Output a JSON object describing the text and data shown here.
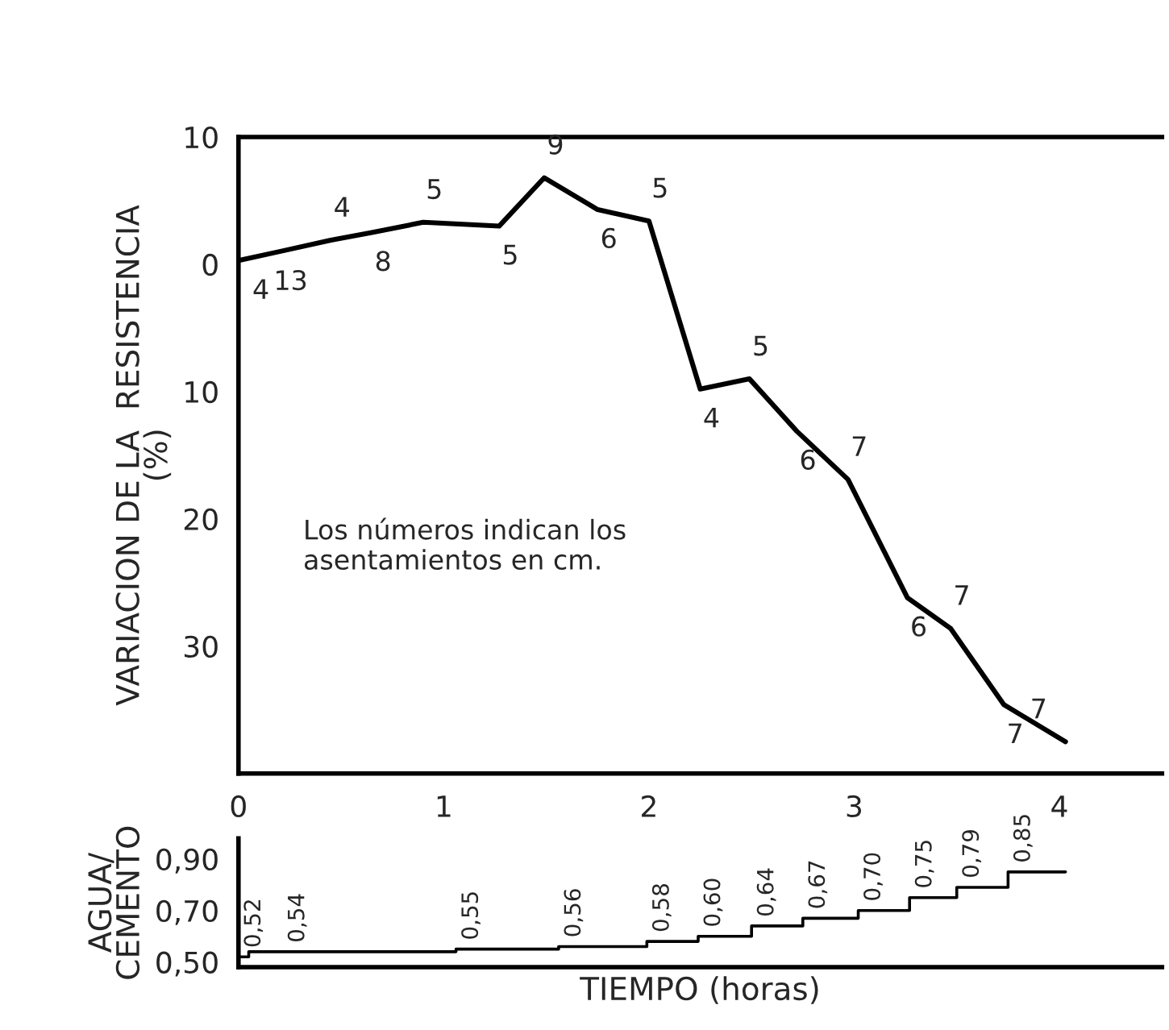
{
  "chart_data": [
    {
      "type": "line",
      "ylabel": "VARIACION DE LA  RESISTENCIA\n(%)",
      "x": [
        0,
        0.2,
        0.45,
        0.65,
        0.9,
        1.27,
        1.49,
        1.75,
        2.0,
        2.25,
        2.49,
        2.72,
        2.97,
        3.26,
        3.47,
        3.73,
        4.03
      ],
      "values": [
        0.3,
        1.0,
        1.9,
        2.5,
        3.3,
        3.0,
        6.8,
        4.3,
        3.4,
        -9.8,
        -9.0,
        -13.1,
        -16.9,
        -26.2,
        -28.6,
        -34.6,
        -37.5
      ],
      "xlim": [
        0,
        4.5
      ],
      "xticks": [
        0,
        1,
        2,
        3,
        4
      ],
      "ylim": [
        -40,
        10
      ],
      "yticks": [
        10,
        0,
        {
          "value": -10,
          "label": "10"
        },
        {
          "value": -20,
          "label": "20"
        },
        {
          "value": -30,
          "label": "30"
        }
      ],
      "annotations": [
        "Los números indican los\nasentamientos en cm.",
        {
          "text": "4",
          "x": 0,
          "y": 0.3
        },
        {
          "text": "13",
          "x": 0.2,
          "y": 1.0
        },
        {
          "text": "4",
          "x": 0.45,
          "y": 1.9
        },
        {
          "text": "8",
          "x": 0.65,
          "y": 2.5
        },
        {
          "text": "5",
          "x": 0.9,
          "y": 3.3
        },
        {
          "text": "5",
          "x": 1.27,
          "y": 3.0
        },
        {
          "text": "9",
          "x": 1.49,
          "y": 6.8
        },
        {
          "text": "6",
          "x": 1.75,
          "y": 4.3
        },
        {
          "text": "5",
          "x": 2.0,
          "y": 3.4
        },
        {
          "text": "4",
          "x": 2.25,
          "y": -9.8
        },
        {
          "text": "5",
          "x": 2.49,
          "y": -9.0
        },
        {
          "text": "6",
          "x": 2.72,
          "y": -13.1
        },
        {
          "text": "7",
          "x": 2.97,
          "y": -16.9
        },
        {
          "text": "6",
          "x": 3.26,
          "y": -26.2
        },
        {
          "text": "7",
          "x": 3.47,
          "y": -28.6
        },
        {
          "text": "7",
          "x": 3.73,
          "y": -34.6
        },
        {
          "text": "7",
          "x": 4.03,
          "y": -37.5
        }
      ]
    },
    {
      "type": "step",
      "ylabel": "AGUA/\nCEMENTO",
      "xlabel": "TIEMPO (horas)",
      "x": [
        0,
        0.05,
        1.06,
        1.56,
        1.99,
        2.24,
        2.5,
        2.75,
        3.02,
        3.27,
        3.5,
        3.75,
        4.03
      ],
      "values": [
        0.52,
        0.54,
        0.55,
        0.56,
        0.58,
        0.6,
        0.64,
        0.67,
        0.7,
        0.75,
        0.79,
        0.85,
        0.85
      ],
      "value_labels": [
        "0,52",
        "0,54",
        "0,55",
        "0,56",
        "0,58",
        "0,60",
        "0,64",
        "0,67",
        "0,70",
        "0,75",
        "0,79",
        "0,85",
        null
      ],
      "xlim": [
        0,
        4.5
      ],
      "ylim": [
        0.48,
        0.98
      ],
      "yticks": [
        {
          "value": 0.5,
          "label": "0,50"
        },
        {
          "value": 0.7,
          "label": "0,70"
        },
        {
          "value": 0.9,
          "label": "0,90"
        }
      ],
      "tick_labels": "y"
    }
  ]
}
